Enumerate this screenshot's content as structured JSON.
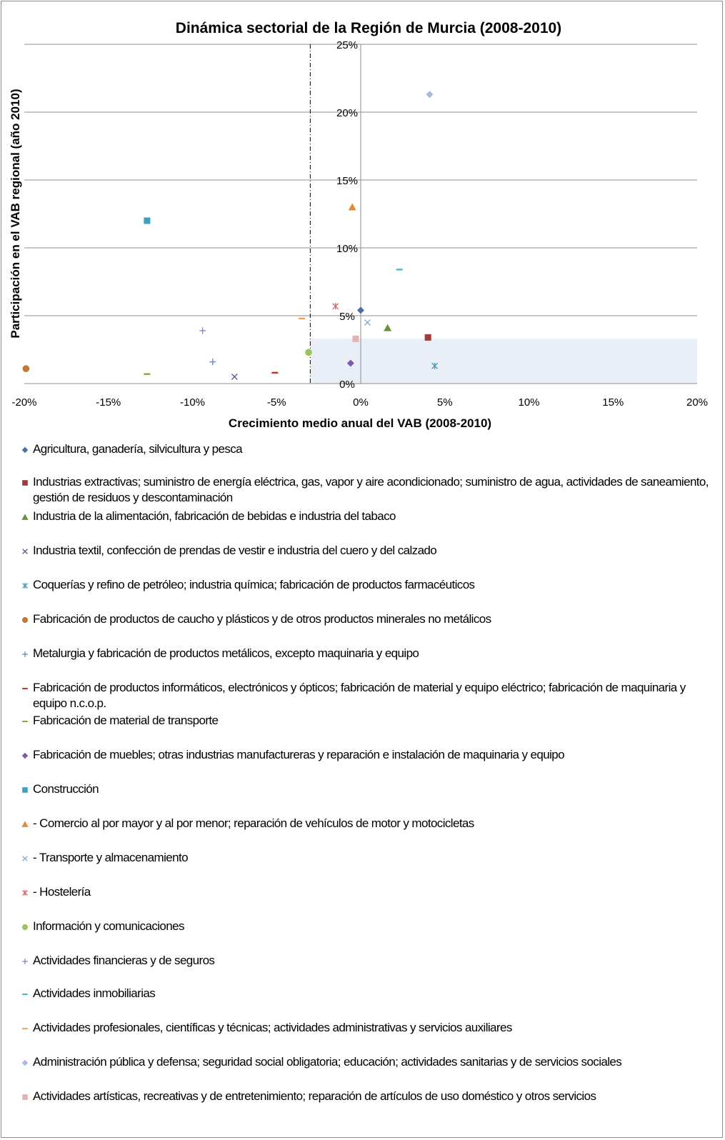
{
  "chart_data": {
    "type": "scatter",
    "title": "Dinámica sectorial de la Región de Murcia (2008-2010)",
    "xlabel": "Crecimiento medio anual del VAB (2008-2010)",
    "ylabel": "Participación en el VAB regional (año 2010)",
    "xlim": [
      -0.2,
      0.2
    ],
    "ylim": [
      0,
      0.25
    ],
    "x_ticks": [
      "-20%",
      "-15%",
      "-10%",
      "-5%",
      "0%",
      "5%",
      "10%",
      "15%",
      "20%"
    ],
    "y_ticks": [
      "0%",
      "5%",
      "10%",
      "15%",
      "20%",
      "25%"
    ],
    "grid": "horizontal",
    "legend_position": "bottom",
    "reference_line_x": -0.03,
    "highlight_region": {
      "x": [
        -0.03,
        0.2
      ],
      "y": [
        0,
        0.033
      ],
      "color": "#e9eef7"
    },
    "series": [
      {
        "name": "Agricultura, ganadería, silvicultura y pesca",
        "marker": "diamond",
        "color": "#4a6fa5",
        "x": 0.0,
        "y": 0.054
      },
      {
        "name": "Industrias extractivas; suministro de energía eléctrica, gas, vapor y aire acondicionado; suministro de agua, actividades de saneamiento, gestión de residuos y descontaminación",
        "marker": "square",
        "color": "#a23b3b",
        "x": 0.04,
        "y": 0.034
      },
      {
        "name": "Industria de la alimentación, fabricación de bebidas e industria del tabaco",
        "marker": "triangle",
        "color": "#6b9040",
        "x": 0.016,
        "y": 0.041
      },
      {
        "name": "Industria textil, confección de prendas de vestir e industria del cuero y del calzado",
        "marker": "x",
        "color": "#6a5a95",
        "x": -0.075,
        "y": 0.005
      },
      {
        "name": "Coquerías y refino de petróleo; industria química; fabricación de productos farmacéuticos",
        "marker": "star",
        "color": "#4f9ab5",
        "x": 0.044,
        "y": 0.013
      },
      {
        "name": "Fabricación de productos de caucho y plásticos y de otros productos minerales no metálicos",
        "marker": "circle",
        "color": "#c0793a",
        "x": -0.199,
        "y": 0.011
      },
      {
        "name": "Metalurgia y fabricación de productos metálicos, excepto maquinaria y equipo",
        "marker": "plus",
        "color": "#6f8bc0",
        "x": -0.088,
        "y": 0.016
      },
      {
        "name": "Fabricación de productos informáticos, electrónicos y ópticos; fabricación de material y equipo eléctrico; fabricación de maquinaria y equipo n.c.o.p.",
        "marker": "dash",
        "color": "#c0392b",
        "x": -0.051,
        "y": 0.008
      },
      {
        "name": "Fabricación de material de transporte",
        "marker": "dash",
        "color": "#8ea63f",
        "x": -0.127,
        "y": 0.007
      },
      {
        "name": "Fabricación de muebles; otras industrias manufactureras y reparación e instalación de maquinaria y equipo",
        "marker": "diamond",
        "color": "#7a5da8",
        "x": -0.006,
        "y": 0.015
      },
      {
        "name": "Construcción",
        "marker": "square",
        "color": "#3ba2bd",
        "x": -0.127,
        "y": 0.12
      },
      {
        "name": "- Comercio al por mayor y al por menor; reparación de vehículos de motor y motocicletas",
        "marker": "triangle",
        "color": "#e38a32",
        "x": -0.005,
        "y": 0.13
      },
      {
        "name": "- Transporte y almacenamiento",
        "marker": "x",
        "color": "#8ea7d4",
        "x": 0.004,
        "y": 0.045
      },
      {
        "name": "- Hostelería",
        "marker": "star",
        "color": "#d46a6a",
        "x": -0.015,
        "y": 0.057
      },
      {
        "name": "Información y comunicaciones",
        "marker": "circle",
        "color": "#9cc15e",
        "x": -0.031,
        "y": 0.023
      },
      {
        "name": "Actividades financieras y de seguros",
        "marker": "plus",
        "color": "#8e86c4",
        "x": -0.094,
        "y": 0.039
      },
      {
        "name": "Actividades inmobiliarias",
        "marker": "dash",
        "color": "#4fb7c9",
        "x": 0.023,
        "y": 0.084
      },
      {
        "name": "Actividades profesionales, científicas y técnicas; actividades administrativas y servicios auxiliares",
        "marker": "dash",
        "color": "#f2a260",
        "x": -0.035,
        "y": 0.048
      },
      {
        "name": "Administración pública y defensa; seguridad social obligatoria; educación; actividades sanitarias y de servicios sociales",
        "marker": "diamond",
        "color": "#a6b9de",
        "x": 0.041,
        "y": 0.213
      },
      {
        "name": "Actividades artísticas, recreativas y de entretenimiento; reparación de artículos de uso doméstico y otros servicios",
        "marker": "square",
        "color": "#e4b4b4",
        "x": -0.003,
        "y": 0.033
      }
    ]
  }
}
